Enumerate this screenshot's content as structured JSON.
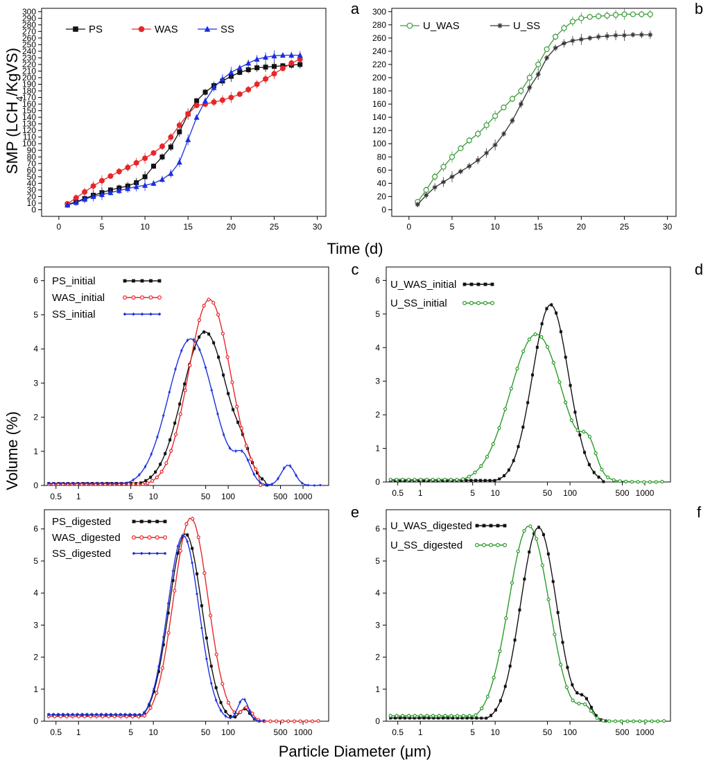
{
  "figure": {
    "smp_ylabel_pre": "SMP (LCH",
    "smp_ylabel_sub": "4",
    "smp_ylabel_post": "/KgVS)",
    "time_xlabel": "Time (d)",
    "volume_ylabel": "Volume (%)",
    "diameter_xlabel": "Particle Diameter (μm)"
  },
  "colors": {
    "PS": "#111111",
    "WAS": "#e8262a",
    "SS": "#1a2ee0",
    "U_WAS": "#333333",
    "U_SS": "#2a9a2a",
    "UWAS_green": "#3a9a3a",
    "UWAS_grey": "#444444"
  },
  "chart_data": [
    {
      "id": "a",
      "type": "line",
      "panel_label": "a",
      "xlim": [
        -2,
        31
      ],
      "ylim": [
        -10,
        305
      ],
      "xticks": [
        0,
        5,
        10,
        15,
        20,
        25,
        30
      ],
      "yticks": [
        0,
        10,
        20,
        30,
        40,
        50,
        60,
        70,
        80,
        90,
        100,
        110,
        120,
        130,
        140,
        150,
        160,
        170,
        180,
        190,
        200,
        210,
        220,
        230,
        240,
        250,
        260,
        270,
        280,
        290,
        300
      ],
      "x": [
        1,
        2,
        3,
        4,
        5,
        6,
        7,
        8,
        9,
        10,
        11,
        12,
        13,
        14,
        15,
        16,
        17,
        18,
        19,
        20,
        21,
        22,
        23,
        24,
        25,
        26,
        27,
        28
      ],
      "series": [
        {
          "name": "PS",
          "color": "#111111",
          "marker": "square",
          "values": [
            8,
            12,
            17,
            22,
            26,
            30,
            33,
            36,
            41,
            50,
            66,
            80,
            95,
            118,
            145,
            165,
            178,
            188,
            195,
            202,
            208,
            212,
            215,
            216,
            217,
            218,
            219,
            220
          ]
        },
        {
          "name": "WAS",
          "color": "#e8262a",
          "marker": "circle",
          "values": [
            9,
            18,
            27,
            36,
            44,
            51,
            58,
            64,
            71,
            78,
            86,
            96,
            110,
            128,
            145,
            158,
            160,
            163,
            166,
            170,
            175,
            182,
            190,
            198,
            206,
            214,
            222,
            228
          ]
        },
        {
          "name": "SS",
          "color": "#1a2ee0",
          "marker": "triangle",
          "values": [
            7,
            11,
            16,
            20,
            23,
            26,
            29,
            32,
            35,
            37,
            40,
            46,
            55,
            72,
            106,
            140,
            165,
            185,
            198,
            208,
            215,
            222,
            228,
            231,
            233,
            234,
            234,
            234
          ]
        }
      ]
    },
    {
      "id": "b",
      "type": "line",
      "panel_label": "b",
      "xlim": [
        -2,
        31
      ],
      "ylim": [
        -10,
        305
      ],
      "xticks": [
        0,
        5,
        10,
        15,
        20,
        25,
        30
      ],
      "yticks": [
        0,
        20,
        40,
        60,
        80,
        100,
        120,
        140,
        160,
        180,
        200,
        220,
        240,
        260,
        280,
        300
      ],
      "x": [
        1,
        2,
        3,
        4,
        5,
        6,
        7,
        8,
        9,
        10,
        11,
        12,
        13,
        14,
        15,
        16,
        17,
        18,
        19,
        20,
        21,
        22,
        23,
        24,
        25,
        26,
        27,
        28
      ],
      "series": [
        {
          "name": "U_WAS",
          "color": "#3a9a3a",
          "marker": "open-circle",
          "values": [
            12,
            30,
            50,
            65,
            80,
            93,
            105,
            115,
            128,
            142,
            155,
            168,
            180,
            200,
            220,
            243,
            262,
            275,
            285,
            290,
            292,
            293,
            294,
            295,
            296,
            296,
            296,
            296
          ]
        },
        {
          "name": "U_SS",
          "color": "#333333",
          "marker": "star",
          "values": [
            8,
            22,
            34,
            42,
            50,
            58,
            66,
            75,
            86,
            98,
            115,
            135,
            160,
            185,
            205,
            230,
            245,
            252,
            256,
            258,
            260,
            262,
            263,
            264,
            264,
            265,
            265,
            265
          ]
        }
      ]
    },
    {
      "id": "c",
      "type": "line",
      "panel_label": "c",
      "xscale": "log",
      "xlim": [
        0.35,
        2200
      ],
      "ylim": [
        0,
        6.4
      ],
      "xticks": [
        0.5,
        1,
        5,
        10,
        50,
        100,
        500,
        1000
      ],
      "xticklabels": [
        "0.5",
        "1",
        "5",
        "10",
        "50",
        "100",
        "500",
        "1000"
      ],
      "yticks": [
        0,
        1,
        2,
        3,
        4,
        5,
        6
      ],
      "series": [
        {
          "name": "PS_initial",
          "color": "#111111",
          "marker": "square",
          "mu": 1.69,
          "sigma": 0.3,
          "peak": 4.5,
          "floor": 0.06,
          "x_min": 0.4,
          "x_max": 330,
          "bumps": [
            [
              2.2,
              0.1,
              0.4
            ]
          ]
        },
        {
          "name": "WAS_initial",
          "color": "#e8262a",
          "marker": "open-circle",
          "mu": 1.75,
          "sigma": 0.28,
          "peak": 5.45,
          "floor": 0.04,
          "x_min": 0.4,
          "x_max": 270,
          "bumps": []
        },
        {
          "name": "SS_initial",
          "color": "#1a2ee0",
          "marker": "diamond",
          "mu": 1.5,
          "sigma": 0.3,
          "peak": 4.3,
          "floor": 0.06,
          "x_min": 0.4,
          "x_max": 1700,
          "bumps": [
            [
              2.2,
              0.1,
              0.7
            ],
            [
              2.8,
              0.09,
              0.6
            ]
          ]
        }
      ]
    },
    {
      "id": "d",
      "type": "line",
      "panel_label": "d",
      "xscale": "log",
      "xlim": [
        0.35,
        2200
      ],
      "ylim": [
        0,
        6.4
      ],
      "xticks": [
        0.5,
        1,
        5,
        10,
        50,
        100,
        500,
        1000
      ],
      "xticklabels": [
        "0.5",
        "1",
        "5",
        "10",
        "50",
        "100",
        "500",
        "1000"
      ],
      "yticks": [
        0,
        1,
        2,
        3,
        4,
        5,
        6
      ],
      "series": [
        {
          "name": "U_WAS_initial",
          "color": "#111111",
          "marker": "square",
          "mu": 1.74,
          "sigma": 0.24,
          "peak": 5.28,
          "floor": 0.05,
          "x_min": 0.4,
          "x_max": 280,
          "bumps": []
        },
        {
          "name": "U_SS_initial",
          "color": "#2a9a2a",
          "marker": "open-circle",
          "mu": 1.55,
          "sigma": 0.35,
          "peak": 4.4,
          "floor": 0.07,
          "x_min": 0.4,
          "x_max": 1700,
          "bumps": [
            [
              2.25,
              0.1,
              0.8
            ]
          ]
        }
      ]
    },
    {
      "id": "e",
      "type": "line",
      "panel_label": "e",
      "xscale": "log",
      "xlim": [
        0.35,
        2200
      ],
      "ylim": [
        0,
        6.6
      ],
      "xticks": [
        0.5,
        1,
        5,
        10,
        50,
        100,
        500,
        1000
      ],
      "xticklabels": [
        "0.5",
        "1",
        "5",
        "10",
        "50",
        "100",
        "500",
        "1000"
      ],
      "yticks": [
        0,
        1,
        2,
        3,
        4,
        5,
        6
      ],
      "series": [
        {
          "name": "PS_digested",
          "color": "#111111",
          "marker": "square",
          "mu": 1.43,
          "sigma": 0.22,
          "peak": 5.85,
          "floor": 0.2,
          "x_min": 0.4,
          "x_max": 300,
          "bumps": [
            [
              2.22,
              0.07,
              0.38
            ]
          ]
        },
        {
          "name": "WAS_digested",
          "color": "#e8262a",
          "marker": "open-circle",
          "mu": 1.5,
          "sigma": 0.23,
          "peak": 6.35,
          "floor": 0.15,
          "x_min": 0.4,
          "x_max": 1600,
          "bumps": [
            [
              2.25,
              0.07,
              0.4
            ]
          ]
        },
        {
          "name": "SS_digested",
          "color": "#1a2ee0",
          "marker": "diamond",
          "mu": 1.4,
          "sigma": 0.21,
          "peak": 5.8,
          "floor": 0.2,
          "x_min": 0.4,
          "x_max": 300,
          "bumps": [
            [
              2.2,
              0.07,
              0.7
            ]
          ]
        }
      ]
    },
    {
      "id": "f",
      "type": "line",
      "panel_label": "f",
      "xscale": "log",
      "xlim": [
        0.35,
        2200
      ],
      "ylim": [
        0,
        6.6
      ],
      "xticks": [
        0.5,
        1,
        5,
        10,
        50,
        100,
        500,
        1000
      ],
      "xticklabels": [
        "0.5",
        "1",
        "5",
        "10",
        "50",
        "100",
        "500",
        "1000"
      ],
      "yticks": [
        0,
        1,
        2,
        3,
        4,
        5,
        6
      ],
      "series": [
        {
          "name": "U_WAS_digested",
          "color": "#111111",
          "marker": "square",
          "mu": 1.58,
          "sigma": 0.24,
          "peak": 6.05,
          "floor": 0.1,
          "x_min": 0.4,
          "x_max": 300,
          "bumps": [
            [
              2.2,
              0.09,
              0.55
            ]
          ]
        },
        {
          "name": "U_SS_digested",
          "color": "#2a9a2a",
          "marker": "open-circle",
          "mu": 1.45,
          "sigma": 0.27,
          "peak": 6.1,
          "floor": 0.17,
          "x_min": 0.4,
          "x_max": 1800,
          "bumps": [
            [
              2.2,
              0.09,
              0.4
            ]
          ]
        }
      ]
    }
  ]
}
